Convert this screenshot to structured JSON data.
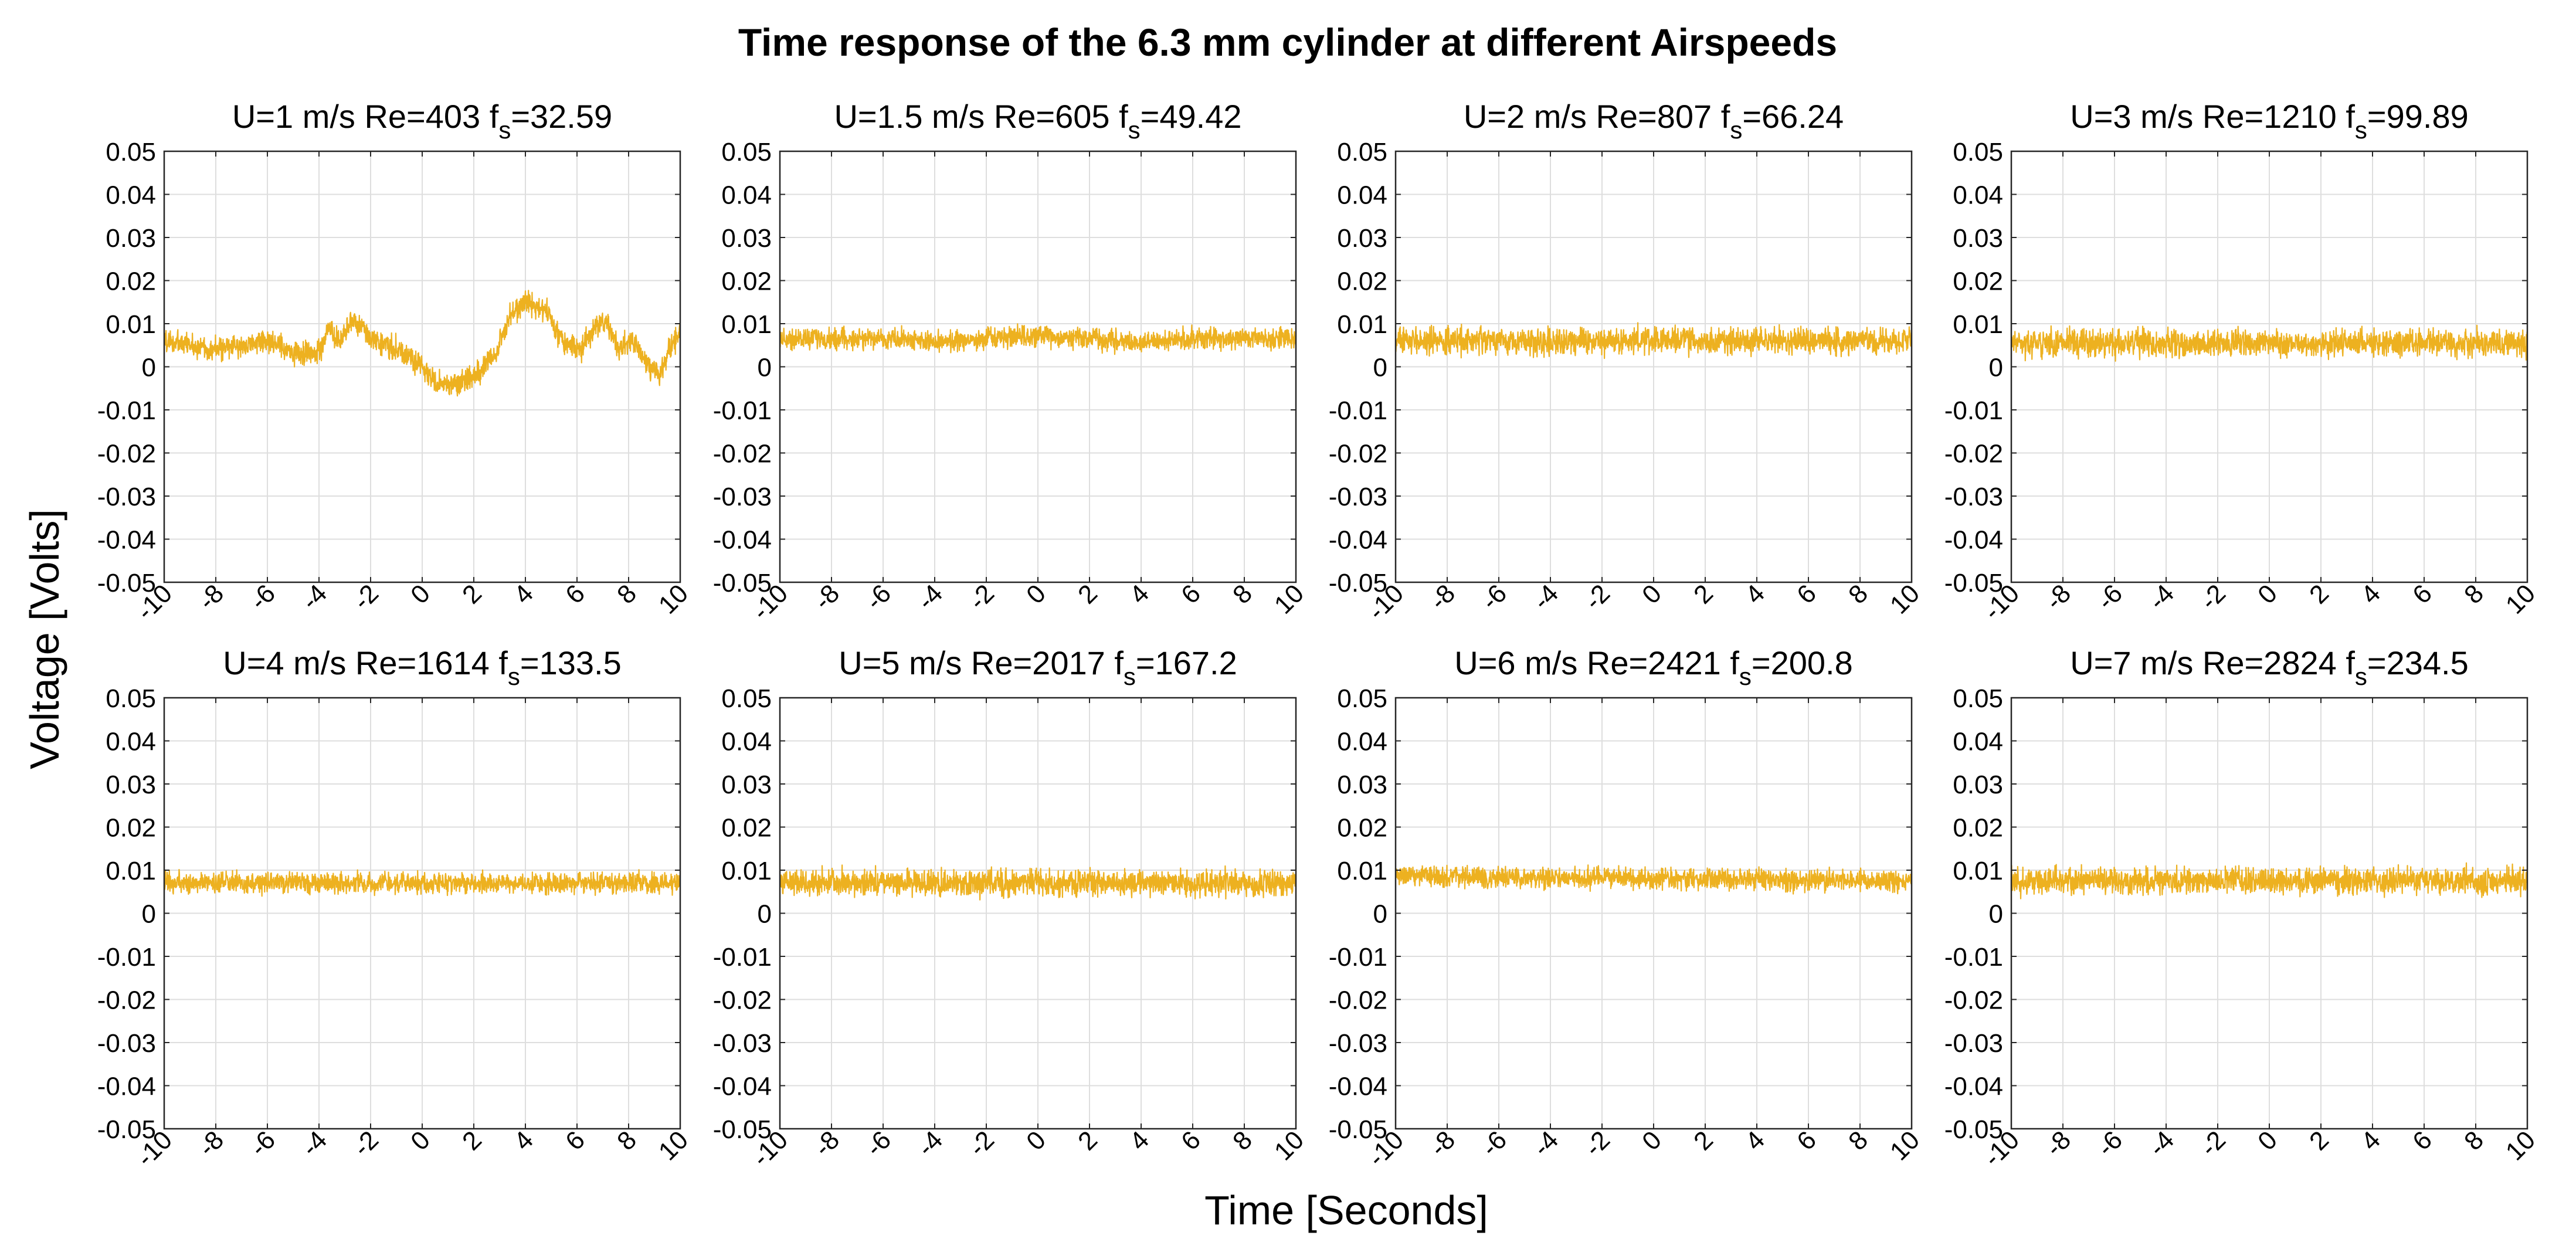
{
  "figure": {
    "title": "Time response of the 6.3 mm cylinder at different Airspeeds",
    "xlabel": "Time [Seconds]",
    "ylabel": "Voltage [Volts]"
  },
  "colors": {
    "trace": "#EDB120",
    "grid": "#dedede",
    "axis": "#262626",
    "background": "#ffffff"
  },
  "chart_data": [
    {
      "type": "line",
      "speed_label": "U=1 m/s",
      "re_label": "Re=403",
      "fs_prefix": "f",
      "fs_sub": "s",
      "fs_value": "=32.59",
      "xlim": [
        -10,
        10
      ],
      "ylim": [
        -0.05,
        0.05
      ],
      "x_ticks": [
        "-10",
        "-8",
        "-6",
        "-4",
        "-2",
        "0",
        "2",
        "4",
        "6",
        "8",
        "10"
      ],
      "y_ticks": [
        "0.05",
        "0.04",
        "0.03",
        "0.02",
        "0.01",
        "0",
        "-0.01",
        "-0.02",
        "-0.03",
        "-0.04",
        "-0.05"
      ],
      "noise_amplitude": 0.004,
      "mean_profile": [
        [
          -10,
          0.006
        ],
        [
          -8,
          0.004
        ],
        [
          -6,
          0.006
        ],
        [
          -5,
          0.003
        ],
        [
          -4,
          0.0035
        ],
        [
          -3.6,
          0.009
        ],
        [
          -3.2,
          0.005
        ],
        [
          -2.7,
          0.011
        ],
        [
          -2,
          0.007
        ],
        [
          -1,
          0.004
        ],
        [
          0,
          0.0
        ],
        [
          0.5,
          -0.004
        ],
        [
          1.2,
          -0.004
        ],
        [
          2,
          -0.002
        ],
        [
          2.8,
          0.002
        ],
        [
          3.4,
          0.012
        ],
        [
          4,
          0.015
        ],
        [
          4.8,
          0.013
        ],
        [
          5.3,
          0.007
        ],
        [
          6.1,
          0.004
        ],
        [
          6.5,
          0.007
        ],
        [
          7.1,
          0.011
        ],
        [
          7.6,
          0.004
        ],
        [
          8.1,
          0.006
        ],
        [
          8.7,
          0.001
        ],
        [
          9.2,
          -0.002
        ],
        [
          9.6,
          0.004
        ],
        [
          10,
          0.008
        ]
      ]
    },
    {
      "type": "line",
      "speed_label": "U=1.5 m/s",
      "re_label": "Re=605",
      "fs_prefix": "f",
      "fs_sub": "s",
      "fs_value": "=49.42",
      "xlim": [
        -10,
        10
      ],
      "ylim": [
        -0.05,
        0.05
      ],
      "x_ticks": [
        "-10",
        "-8",
        "-6",
        "-4",
        "-2",
        "0",
        "2",
        "4",
        "6",
        "8",
        "10"
      ],
      "y_ticks": [
        "0.05",
        "0.04",
        "0.03",
        "0.02",
        "0.01",
        "0",
        "-0.01",
        "-0.02",
        "-0.03",
        "-0.04",
        "-0.05"
      ],
      "noise_amplitude": 0.0035,
      "mean_profile": [
        [
          -10,
          0.0065
        ],
        [
          -5,
          0.0065
        ],
        [
          -4,
          0.0055
        ],
        [
          -2,
          0.0065
        ],
        [
          0,
          0.007
        ],
        [
          2,
          0.0065
        ],
        [
          4,
          0.0055
        ],
        [
          6,
          0.0065
        ],
        [
          10,
          0.0065
        ]
      ]
    },
    {
      "type": "line",
      "speed_label": "U=2 m/s",
      "re_label": "Re=807",
      "fs_prefix": "f",
      "fs_sub": "s",
      "fs_value": "=66.24",
      "xlim": [
        -10,
        10
      ],
      "ylim": [
        -0.05,
        0.05
      ],
      "x_ticks": [
        "-10",
        "-8",
        "-6",
        "-4",
        "-2",
        "0",
        "2",
        "4",
        "6",
        "8",
        "10"
      ],
      "y_ticks": [
        "0.05",
        "0.04",
        "0.03",
        "0.02",
        "0.01",
        "0",
        "-0.01",
        "-0.02",
        "-0.03",
        "-0.04",
        "-0.05"
      ],
      "noise_amplitude": 0.0045,
      "mean_profile": [
        [
          -10,
          0.006
        ],
        [
          10,
          0.006
        ]
      ]
    },
    {
      "type": "line",
      "speed_label": "U=3 m/s",
      "re_label": "Re=1210",
      "fs_prefix": "f",
      "fs_sub": "s",
      "fs_value": "=99.89",
      "xlim": [
        -10,
        10
      ],
      "ylim": [
        -0.05,
        0.05
      ],
      "x_ticks": [
        "-10",
        "-8",
        "-6",
        "-4",
        "-2",
        "0",
        "2",
        "4",
        "6",
        "8",
        "10"
      ],
      "y_ticks": [
        "0.05",
        "0.04",
        "0.03",
        "0.02",
        "0.01",
        "0",
        "-0.01",
        "-0.02",
        "-0.03",
        "-0.04",
        "-0.05"
      ],
      "noise_amplitude": 0.0045,
      "mean_profile": [
        [
          -10,
          0.0055
        ],
        [
          10,
          0.0055
        ]
      ]
    },
    {
      "type": "line",
      "speed_label": "U=4 m/s",
      "re_label": "Re=1614",
      "fs_prefix": "f",
      "fs_sub": "s",
      "fs_value": "=133.5",
      "xlim": [
        -10,
        10
      ],
      "ylim": [
        -0.05,
        0.05
      ],
      "x_ticks": [
        "-10",
        "-8",
        "-6",
        "-4",
        "-2",
        "0",
        "2",
        "4",
        "6",
        "8",
        "10"
      ],
      "y_ticks": [
        "0.05",
        "0.04",
        "0.03",
        "0.02",
        "0.01",
        "0",
        "-0.01",
        "-0.02",
        "-0.03",
        "-0.04",
        "-0.05"
      ],
      "noise_amplitude": 0.0035,
      "mean_profile": [
        [
          -10,
          0.007
        ],
        [
          10,
          0.007
        ]
      ]
    },
    {
      "type": "line",
      "speed_label": "U=5 m/s",
      "re_label": "Re=2017",
      "fs_prefix": "f",
      "fs_sub": "s",
      "fs_value": "=167.2",
      "xlim": [
        -10,
        10
      ],
      "ylim": [
        -0.05,
        0.05
      ],
      "x_ticks": [
        "-10",
        "-8",
        "-6",
        "-4",
        "-2",
        "0",
        "2",
        "4",
        "6",
        "8",
        "10"
      ],
      "y_ticks": [
        "0.05",
        "0.04",
        "0.03",
        "0.02",
        "0.01",
        "0",
        "-0.01",
        "-0.02",
        "-0.03",
        "-0.04",
        "-0.05"
      ],
      "noise_amplitude": 0.0045,
      "mean_profile": [
        [
          -10,
          0.007
        ],
        [
          10,
          0.007
        ]
      ]
    },
    {
      "type": "line",
      "speed_label": "U=6 m/s",
      "re_label": "Re=2421",
      "fs_prefix": "f",
      "fs_sub": "s",
      "fs_value": "=200.8",
      "xlim": [
        -10,
        10
      ],
      "ylim": [
        -0.05,
        0.05
      ],
      "x_ticks": [
        "-10",
        "-8",
        "-6",
        "-4",
        "-2",
        "0",
        "2",
        "4",
        "6",
        "8",
        "10"
      ],
      "y_ticks": [
        "0.05",
        "0.04",
        "0.03",
        "0.02",
        "0.01",
        "0",
        "-0.01",
        "-0.02",
        "-0.03",
        "-0.04",
        "-0.05"
      ],
      "noise_amplitude": 0.0035,
      "mean_profile": [
        [
          -10,
          0.0085
        ],
        [
          10,
          0.0075
        ]
      ]
    },
    {
      "type": "line",
      "speed_label": "U=7 m/s",
      "re_label": "Re=2824",
      "fs_prefix": "f",
      "fs_sub": "s",
      "fs_value": "=234.5",
      "xlim": [
        -10,
        10
      ],
      "ylim": [
        -0.05,
        0.05
      ],
      "x_ticks": [
        "-10",
        "-8",
        "-6",
        "-4",
        "-2",
        "0",
        "2",
        "4",
        "6",
        "8",
        "10"
      ],
      "y_ticks": [
        "0.05",
        "0.04",
        "0.03",
        "0.02",
        "0.01",
        "0",
        "-0.01",
        "-0.02",
        "-0.03",
        "-0.04",
        "-0.05"
      ],
      "noise_amplitude": 0.0045,
      "mean_profile": [
        [
          -10,
          0.0075
        ],
        [
          10,
          0.0075
        ]
      ]
    }
  ]
}
